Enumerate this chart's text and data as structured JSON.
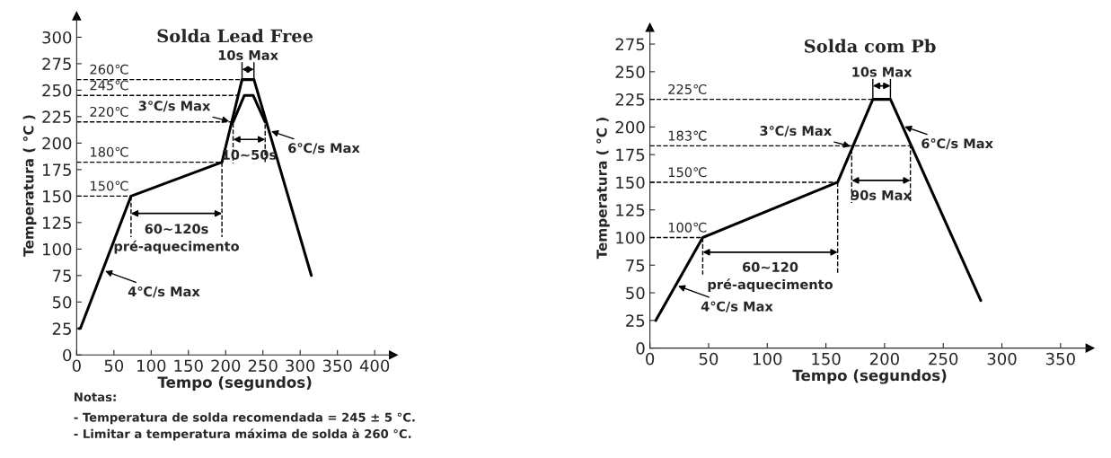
{
  "chart_data": [
    {
      "type": "line",
      "title": "Solda Lead Free",
      "xlabel": "Tempo (segundos)",
      "ylabel": "Temperatura ( °C )",
      "xlim": [
        0,
        425
      ],
      "xticks": [
        0,
        50,
        100,
        150,
        200,
        250,
        300,
        350,
        400
      ],
      "ylim": [
        0,
        320
      ],
      "yticks": [
        0,
        25,
        50,
        75,
        100,
        125,
        150,
        175,
        200,
        225,
        250,
        275,
        300
      ],
      "grid": false,
      "legend": false,
      "marker": "none",
      "line_style": "solid",
      "series": [
        {
          "color": "#000000",
          "x": [
            3,
            5,
            73,
            195,
            222,
            238,
            315
          ],
          "values": [
            25,
            25,
            150,
            182,
            260,
            260,
            75
          ]
        },
        {
          "color": "#000000",
          "x": [
            210,
            225,
            237,
            253
          ],
          "values": [
            220,
            245,
            245,
            220
          ]
        }
      ],
      "ref_lines": [
        {
          "axis": "y",
          "value": 260,
          "label": "260℃",
          "line_style": "dashed",
          "color": "#000000"
        },
        {
          "axis": "y",
          "value": 245,
          "label": "245℃",
          "line_style": "dashed",
          "color": "#000000"
        },
        {
          "axis": "y",
          "value": 220,
          "label": "220℃",
          "line_style": "dashed",
          "color": "#000000"
        },
        {
          "axis": "y",
          "value": 182,
          "label": "180℃",
          "line_style": "dashed",
          "color": "#000000"
        },
        {
          "axis": "y",
          "value": 150,
          "label": "150℃",
          "line_style": "dashed",
          "color": "#000000"
        },
        {
          "axis": "x",
          "value": 73,
          "line_style": "dashed",
          "color": "#000000"
        },
        {
          "axis": "x",
          "value": 195,
          "line_style": "dashed",
          "color": "#000000"
        },
        {
          "axis": "x",
          "value": 210,
          "line_style": "dashed",
          "color": "#000000"
        },
        {
          "axis": "x",
          "value": 253,
          "line_style": "dashed",
          "color": "#000000"
        }
      ],
      "annotations": [
        {
          "text": "3℃/s Max",
          "x": 208,
          "y": 220
        },
        {
          "text": "6℃/s Max",
          "x": 258,
          "y": 212
        },
        {
          "text": "4℃/s Max",
          "x": 35,
          "y": 80
        },
        "60~120s\npré-aquecimento",
        "10~50s",
        "10s Max",
        "Notas:",
        "- Temperatura de solda recomendada = 245 ± 5 °C.",
        "- Limitar a temperatura máxima de solda à 260 °C."
      ]
    },
    {
      "type": "line",
      "title": "Solda com Pb",
      "xlabel": "Tempo (segundos)",
      "ylabel": "Temperatura ( °C )",
      "xlim": [
        0,
        375
      ],
      "xticks": [
        0,
        50,
        100,
        150,
        200,
        250,
        300,
        350
      ],
      "ylim": [
        0,
        290
      ],
      "yticks": [
        0,
        25,
        50,
        75,
        100,
        125,
        150,
        175,
        200,
        225,
        250,
        275
      ],
      "grid": false,
      "legend": false,
      "marker": "none",
      "line_style": "solid",
      "series": [
        {
          "color": "#000000",
          "x": [
            5,
            45,
            160,
            190,
            205,
            282
          ],
          "values": [
            25,
            100,
            150,
            225,
            225,
            43
          ]
        }
      ],
      "ref_lines": [
        {
          "axis": "y",
          "value": 225,
          "label": "225℃",
          "line_style": "dashed",
          "color": "#000000"
        },
        {
          "axis": "y",
          "value": 183,
          "label": "183℃",
          "line_style": "dashed",
          "color": "#000000"
        },
        {
          "axis": "y",
          "value": 150,
          "label": "150℃",
          "line_style": "dashed",
          "color": "#000000"
        },
        {
          "axis": "y",
          "value": 100,
          "label": "100℃",
          "line_style": "dashed",
          "color": "#000000"
        },
        {
          "axis": "x",
          "value": 45,
          "line_style": "dashed",
          "color": "#000000"
        },
        {
          "axis": "x",
          "value": 160,
          "line_style": "dashed",
          "color": "#000000"
        },
        {
          "axis": "x",
          "value": 172,
          "line_style": "dashed",
          "color": "#000000"
        },
        {
          "axis": "x",
          "value": 222,
          "line_style": "dashed",
          "color": "#000000"
        }
      ],
      "annotations": [
        {
          "text": "3℃/s Max",
          "x": 173,
          "y": 182
        },
        {
          "text": "6℃/s Max",
          "x": 215,
          "y": 201
        },
        {
          "text": "4℃/s Max",
          "x": 22,
          "y": 57
        },
        "60~120\npré-aquecimento",
        "90s Max",
        "10s Max"
      ]
    }
  ]
}
